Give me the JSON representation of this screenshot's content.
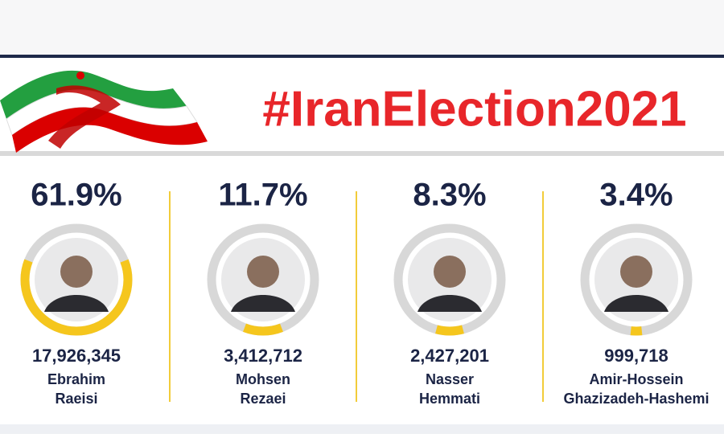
{
  "header": {
    "title": "#IranElection2021"
  },
  "candidates": [
    {
      "share": 61.9,
      "share_label": "61.9%",
      "votes": "17,926,345",
      "name_lines": [
        "Ebrahim",
        "Raeisi"
      ]
    },
    {
      "share": 11.7,
      "share_label": "11.7%",
      "votes": "3,412,712",
      "name_lines": [
        "Mohsen",
        "Rezaei"
      ]
    },
    {
      "share": 8.3,
      "share_label": "8.3%",
      "votes": "2,427,201",
      "name_lines": [
        "Nasser",
        "Hemmati"
      ]
    },
    {
      "share": 3.4,
      "share_label": "3.4%",
      "votes": "999,718",
      "name_lines": [
        "Amir-Hossein",
        "Ghazizadeh-Hashemi"
      ]
    }
  ]
}
